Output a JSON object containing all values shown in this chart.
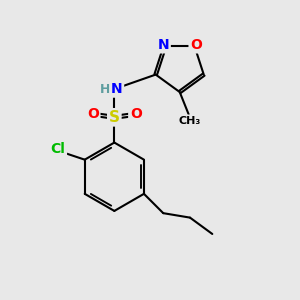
{
  "background_color": "#e8e8e8",
  "atom_colors": {
    "C": "#000000",
    "H": "#5f9ea0",
    "N": "#0000ff",
    "O": "#ff0000",
    "S": "#cccc00",
    "Cl": "#00bb00"
  },
  "bond_color": "#000000",
  "bond_width": 1.5,
  "font_size_atoms": 10
}
